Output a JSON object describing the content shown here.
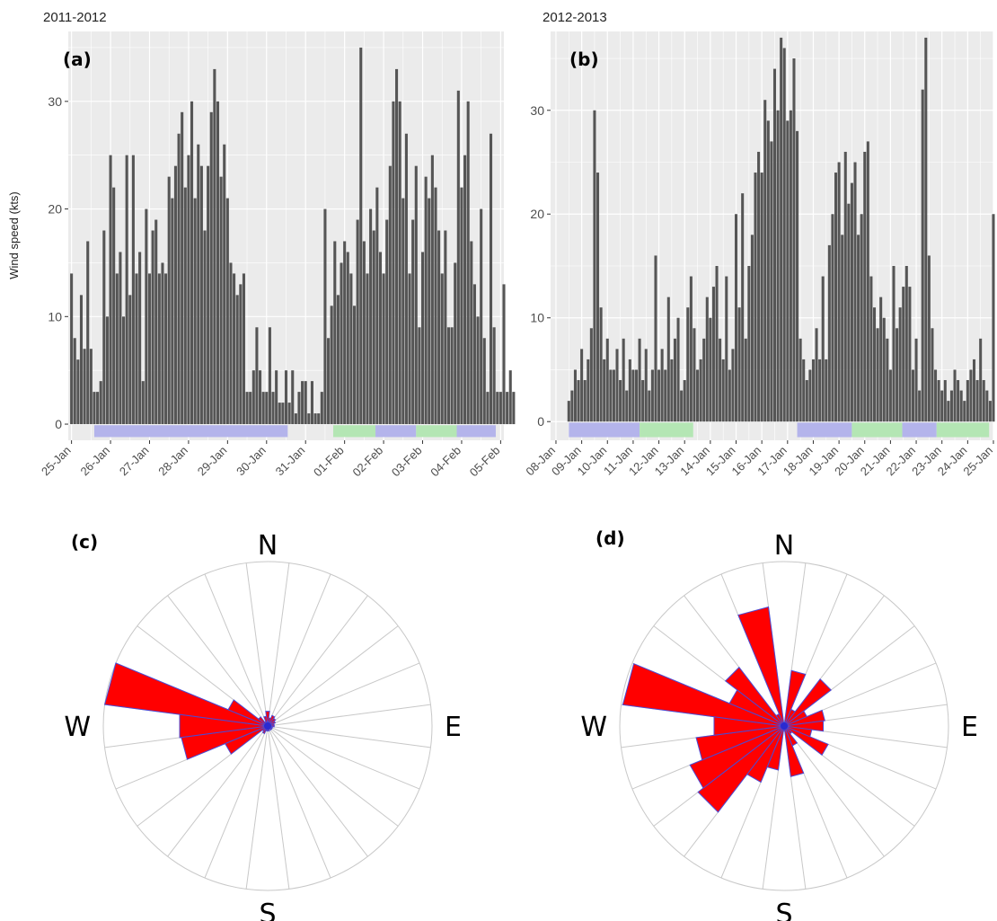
{
  "figure": {
    "title_left": "2011-2012",
    "title_right": "2012-2013",
    "ylabel": "Wind speed (kts)",
    "panel_labels": [
      "(a)",
      "(b)",
      "(c)",
      "(d)"
    ]
  },
  "colors": {
    "bar": "#555555",
    "panel_bg": "#ebebeb",
    "grid": "#ffffff",
    "band_blue": "#b4b4eb",
    "band_green": "#b4e6b4",
    "rose_fill": "#ff0000",
    "rose_stroke": "#4a4ad6"
  },
  "chart_data": [
    {
      "type": "bar",
      "panel": "(a)",
      "title": "2011-2012",
      "ylabel": "Wind speed (kts)",
      "xlabel": "",
      "ylim": [
        -1.5,
        36.5
      ],
      "yticks": [
        0,
        10,
        20,
        30
      ],
      "xlim": [
        "2012-01-24 22:00",
        "2012-02-05 02:00"
      ],
      "xticks": [
        "25-Jan",
        "26-Jan",
        "27-Jan",
        "28-Jan",
        "29-Jan",
        "30-Jan",
        "31-Jan",
        "01-Feb",
        "02-Feb",
        "03-Feb",
        "04-Feb",
        "05-Feb"
      ],
      "grid": true,
      "series": [
        {
          "start": "2012-01-25 00:00",
          "step_hours": 2,
          "values": [
            14,
            8,
            6,
            12,
            7,
            17,
            7,
            3,
            3,
            4,
            18,
            10,
            25,
            22,
            14,
            16,
            10,
            25,
            12,
            25,
            14,
            16,
            4,
            20,
            14,
            18,
            19,
            14,
            15,
            14,
            23,
            21,
            24,
            27,
            29,
            22,
            25,
            30,
            21,
            26,
            24,
            18,
            24,
            29,
            33,
            30,
            23,
            26,
            21,
            15,
            14,
            12,
            13,
            14,
            3,
            3,
            5,
            9,
            5,
            3,
            3,
            9,
            3,
            5,
            2,
            2,
            5,
            2,
            5,
            1,
            3,
            4,
            4,
            1,
            4,
            1,
            1,
            3,
            20,
            8,
            11,
            17,
            12,
            15,
            17,
            16,
            14,
            11,
            19,
            35,
            17,
            14,
            20,
            18,
            22,
            16,
            14,
            19,
            24,
            30,
            33,
            30,
            21,
            27,
            14,
            19,
            24,
            9,
            16,
            23,
            21,
            25,
            22,
            18,
            14,
            18,
            9,
            9,
            15,
            31,
            22,
            25,
            30,
            17,
            13,
            10,
            20,
            8,
            3,
            27,
            9,
            3,
            3,
            13,
            3,
            5,
            3
          ]
        }
      ],
      "bands": [
        {
          "start": "2012-01-25 14:00",
          "end": "2012-01-30 13:00",
          "color": "blue"
        },
        {
          "start": "2012-01-31 17:00",
          "end": "2012-02-01 19:00",
          "color": "green"
        },
        {
          "start": "2012-02-01 19:00",
          "end": "2012-02-02 20:00",
          "color": "blue"
        },
        {
          "start": "2012-02-02 20:00",
          "end": "2012-02-03 21:00",
          "color": "green"
        },
        {
          "start": "2012-02-03 21:00",
          "end": "2012-02-04 21:00",
          "color": "blue"
        }
      ]
    },
    {
      "type": "bar",
      "panel": "(b)",
      "title": "2012-2013",
      "ylabel": "",
      "xlabel": "",
      "ylim": [
        -1.8,
        37.6
      ],
      "yticks": [
        0,
        10,
        20,
        30
      ],
      "xlim": [
        "2013-01-07 19:00",
        "2013-01-25 00:00"
      ],
      "xticks": [
        "08-Jan",
        "09-Jan",
        "10-Jan",
        "11-Jan",
        "12-Jan",
        "13-Jan",
        "14-Jan",
        "15-Jan",
        "16-Jan",
        "17-Jan",
        "18-Jan",
        "19-Jan",
        "20-Jan",
        "21-Jan",
        "22-Jan",
        "23-Jan",
        "24-Jan",
        "25-Jan"
      ],
      "grid": true,
      "series": [
        {
          "start": "2013-01-08 12:00",
          "step_hours": 3,
          "values": [
            2,
            3,
            5,
            4,
            7,
            4,
            6,
            9,
            30,
            24,
            11,
            6,
            8,
            5,
            5,
            7,
            4,
            8,
            3,
            6,
            5,
            5,
            8,
            4,
            7,
            3,
            5,
            16,
            5,
            7,
            5,
            12,
            6,
            8,
            10,
            3,
            4,
            11,
            14,
            9,
            5,
            6,
            8,
            12,
            10,
            13,
            15,
            8,
            6,
            14,
            5,
            7,
            20,
            11,
            22,
            8,
            15,
            18,
            24,
            26,
            24,
            31,
            29,
            27,
            34,
            30,
            37,
            36,
            29,
            30,
            35,
            28,
            8,
            6,
            4,
            5,
            6,
            9,
            6,
            14,
            6,
            17,
            20,
            24,
            25,
            18,
            26,
            21,
            23,
            25,
            18,
            20,
            26,
            27,
            14,
            11,
            9,
            12,
            10,
            8,
            5,
            15,
            9,
            11,
            13,
            15,
            13,
            5,
            8,
            3,
            32,
            37,
            16,
            9,
            5,
            4,
            3,
            4,
            2,
            3,
            5,
            4,
            3,
            2,
            4,
            5,
            6,
            4,
            8,
            4,
            3,
            2,
            20
          ]
        }
      ],
      "bands": [
        {
          "start": "2013-01-08 12:00",
          "end": "2013-01-11 06:00",
          "color": "blue"
        },
        {
          "start": "2013-01-11 06:00",
          "end": "2013-01-13 08:00",
          "color": "green"
        },
        {
          "start": "2013-01-17 09:00",
          "end": "2013-01-19 12:00",
          "color": "blue"
        },
        {
          "start": "2013-01-19 12:00",
          "end": "2013-01-21 11:00",
          "color": "green"
        },
        {
          "start": "2013-01-21 11:00",
          "end": "2013-01-22 19:00",
          "color": "blue"
        },
        {
          "start": "2013-01-22 19:00",
          "end": "2013-01-24 20:00",
          "color": "green"
        }
      ]
    },
    {
      "type": "rose",
      "panel": "(c)",
      "direction_labels": [
        "N",
        "E",
        "S",
        "W"
      ],
      "sectors": 24,
      "sector_degrees": [
        0,
        15,
        30,
        45,
        60,
        75,
        90,
        105,
        120,
        135,
        150,
        165,
        180,
        195,
        210,
        225,
        240,
        255,
        270,
        285,
        300,
        315,
        330,
        345
      ],
      "values": [
        0.09,
        0.05,
        0.07,
        0.06,
        0.05,
        0.04,
        0.04,
        0.03,
        0.03,
        0.03,
        0.02,
        0.03,
        0.03,
        0.03,
        0.05,
        0.04,
        0.28,
        0.53,
        0.54,
        1.0,
        0.26,
        0.07,
        0.03,
        0.06
      ]
    },
    {
      "type": "rose",
      "panel": "(d)",
      "direction_labels": [
        "N",
        "E",
        "S",
        "W"
      ],
      "sectors": 24,
      "sector_degrees": [
        0,
        15,
        30,
        45,
        60,
        75,
        90,
        105,
        120,
        135,
        150,
        165,
        180,
        195,
        210,
        225,
        240,
        255,
        270,
        285,
        300,
        315,
        330,
        345
      ],
      "values": [
        0.02,
        0.34,
        0.11,
        0.36,
        0.15,
        0.25,
        0.24,
        0.17,
        0.29,
        0.06,
        0.13,
        0.31,
        0.03,
        0.27,
        0.37,
        0.66,
        0.62,
        0.54,
        0.43,
        0.99,
        0.36,
        0.45,
        0.08,
        0.73
      ]
    }
  ]
}
